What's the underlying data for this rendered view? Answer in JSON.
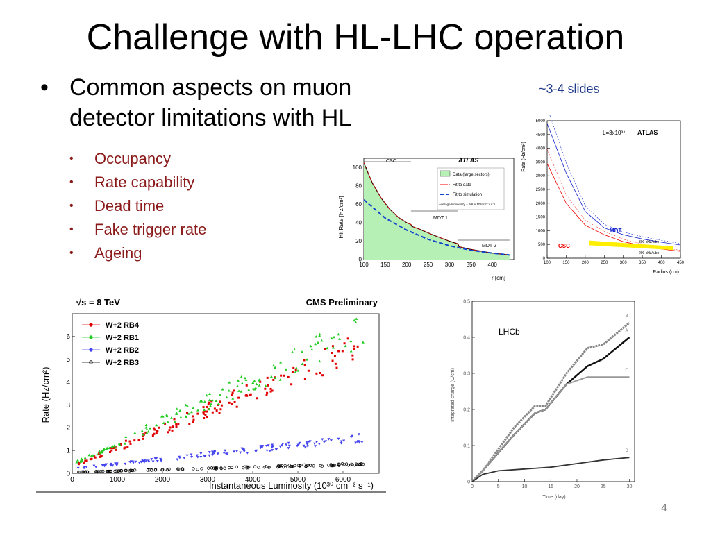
{
  "slide": {
    "title": "Challenge with HL-LHC operation",
    "bullet": "Common aspects on muon detector limitations with HL",
    "note": "~3-4 slides",
    "subbullets": [
      "Occupancy",
      "Rate capability",
      "Dead time",
      "Fake trigger rate",
      "Ageing"
    ],
    "page_number": "4"
  },
  "chart_data": [
    {
      "type": "area",
      "title": "ATLAS",
      "ylabel": "Hit Rate [Hz/cm²]",
      "xlabel": "r [cm]",
      "xlim": [
        100,
        450
      ],
      "ylim": [
        0,
        110
      ],
      "xticks": [
        "100",
        "150",
        "200",
        "250",
        "300",
        "350",
        "400"
      ],
      "yticks": [
        "0",
        "20",
        "40",
        "60",
        "80",
        "100"
      ],
      "regions": [
        "CSC",
        "MDT 1",
        "MDT 2"
      ],
      "legend": [
        "Data (large sectors)",
        "Fit to data",
        "Fit to simulation"
      ],
      "legend_note": "Average luminosity = 9.6 × 10³³ cm⁻² s⁻¹",
      "series": [
        {
          "name": "Data (large sectors)",
          "x": [
            100,
            120,
            140,
            160,
            180,
            200,
            210,
            212,
            230,
            260,
            300,
            320,
            322,
            350,
            400,
            440
          ],
          "y": [
            105,
            83,
            67,
            55,
            46,
            40,
            38,
            36,
            33,
            27,
            20,
            17,
            14,
            11,
            7,
            5
          ]
        },
        {
          "name": "Fit to simulation",
          "x": [
            100,
            150,
            200,
            250,
            300,
            350,
            400,
            440
          ],
          "y": [
            65,
            45,
            32,
            22,
            15,
            10,
            7,
            5
          ]
        }
      ]
    },
    {
      "type": "line",
      "title": "ATLAS",
      "annotation": "L=3x10³⁴",
      "ylabel": "Rate (Hz/cm²)",
      "xlabel": "Radius (cm)",
      "xlim": [
        100,
        450
      ],
      "ylim": [
        0,
        5000
      ],
      "xticks": [
        "100",
        "150",
        "200",
        "250",
        "300",
        "350",
        "400",
        "450"
      ],
      "yticks": [
        "0",
        "500",
        "1000",
        "1500",
        "2000",
        "2500",
        "3000",
        "3500",
        "4000",
        "4500",
        "5000"
      ],
      "labels": [
        "CSC",
        "MDT",
        "300 kHz/tube",
        "200 kHz/tube"
      ],
      "series": [
        {
          "name": "CSC",
          "x": [
            100,
            150,
            200,
            250,
            300,
            350,
            400,
            450
          ],
          "y": [
            3450,
            2000,
            1200,
            850,
            600,
            450,
            330,
            250
          ]
        },
        {
          "name": "MDT",
          "x": [
            100,
            150,
            200,
            250,
            300,
            350,
            400,
            450
          ],
          "y": [
            4900,
            3100,
            1700,
            1100,
            850,
            700,
            580,
            480
          ]
        }
      ]
    },
    {
      "type": "scatter",
      "title": "CMS Preliminary",
      "energy_label": "√s = 8 TeV",
      "ylabel": "Rate (Hz/cm²)",
      "xlabel": "Instantaneous Luminosity (10³⁰ cm⁻² s⁻¹)",
      "xlim": [
        0,
        6800
      ],
      "ylim": [
        0,
        7
      ],
      "xticks": [
        "0",
        "1000",
        "2000",
        "3000",
        "4000",
        "5000",
        "6000"
      ],
      "yticks": [
        "0",
        "1",
        "2",
        "3",
        "4",
        "5",
        "6"
      ],
      "series": [
        {
          "name": "W+2 RB4",
          "color": "#e00000",
          "slope": 0.00082,
          "offset": 0.3
        },
        {
          "name": "W+2 RB1",
          "color": "#22cc22",
          "slope": 0.00092,
          "offset": 0.4
        },
        {
          "name": "W+2 RB2",
          "color": "#4444ee",
          "slope": 0.00021,
          "offset": 0.2
        },
        {
          "name": "W+2 RB3",
          "color": "#000000",
          "slope": 5.5e-05,
          "offset": 0.05
        }
      ]
    },
    {
      "type": "line",
      "annotation": "LHCb",
      "ylabel": "Integrated charge (C/cm)",
      "xlabel": "Time (day)",
      "xlim": [
        0,
        31
      ],
      "ylim": [
        0,
        0.5
      ],
      "xticks": [
        "0",
        "5",
        "10",
        "15",
        "20",
        "25",
        "30"
      ],
      "yticks": [
        "0",
        "0.1",
        "0.2",
        "0.3",
        "0.4",
        "0.5"
      ],
      "series": [
        {
          "name": "A",
          "x": [
            0,
            2,
            5,
            8,
            12,
            14,
            18,
            22,
            25,
            30
          ],
          "y": [
            0,
            0.03,
            0.08,
            0.13,
            0.19,
            0.2,
            0.27,
            0.32,
            0.34,
            0.4
          ]
        },
        {
          "name": "B",
          "x": [
            0,
            2,
            5,
            8,
            12,
            14,
            18,
            22,
            25,
            30
          ],
          "y": [
            0,
            0.03,
            0.09,
            0.15,
            0.21,
            0.21,
            0.3,
            0.37,
            0.38,
            0.44
          ]
        },
        {
          "name": "C",
          "x": [
            0,
            2,
            5,
            8,
            12,
            14,
            18,
            22,
            25,
            30
          ],
          "y": [
            0,
            0.03,
            0.08,
            0.13,
            0.19,
            0.2,
            0.27,
            0.29,
            0.29,
            0.29
          ]
        },
        {
          "name": "D",
          "x": [
            0,
            2,
            5,
            10,
            15,
            20,
            25,
            30
          ],
          "y": [
            0,
            0.02,
            0.03,
            0.035,
            0.04,
            0.05,
            0.06,
            0.067
          ]
        }
      ]
    }
  ]
}
